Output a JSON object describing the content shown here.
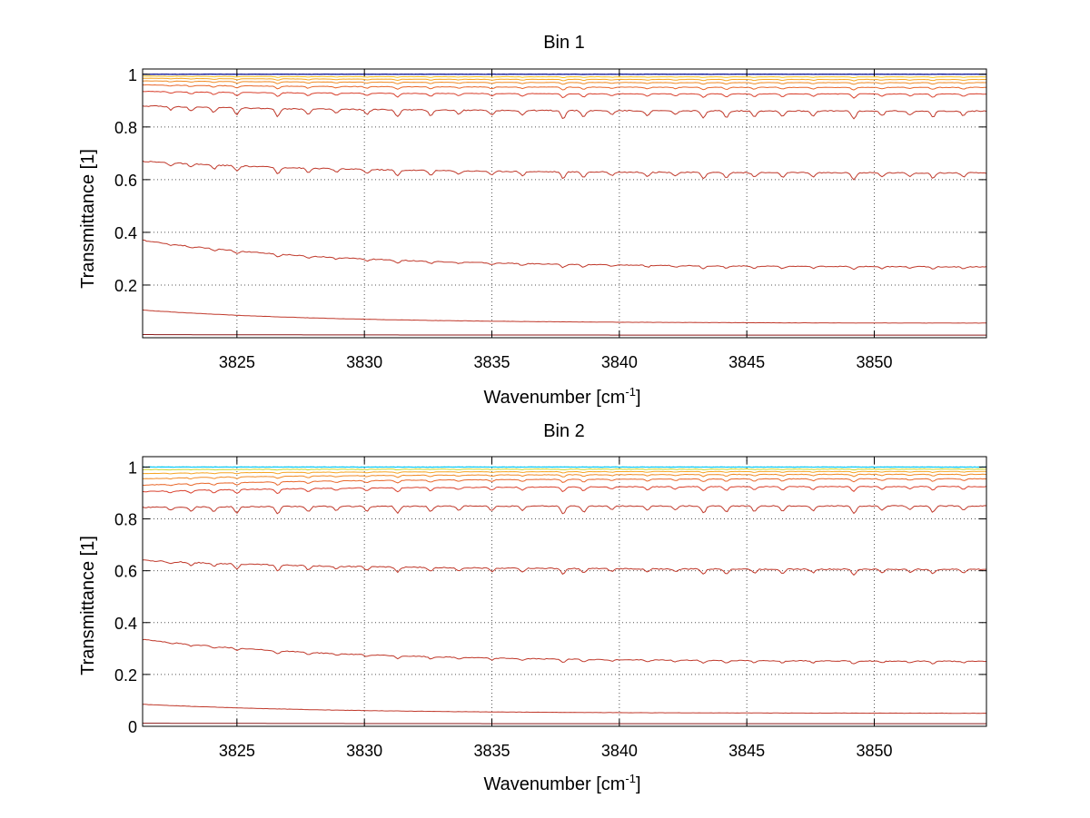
{
  "chart_data": [
    {
      "type": "line",
      "title": "Bin 1",
      "xlabel": "Wavenumber [cm",
      "xlabel_sup": "-1",
      "xlabel_end": "]",
      "ylabel": "Transmittance [1]",
      "xlim": [
        3821.3,
        3854.4
      ],
      "ylim": [
        0,
        1.02
      ],
      "xticks": [
        3825,
        3830,
        3835,
        3840,
        3845,
        3850
      ],
      "xtick_labels": [
        "3825",
        "3830",
        "3835",
        "3840",
        "3845",
        "3850"
      ],
      "yticks": [
        0.2,
        0.4,
        0.6,
        0.8,
        1
      ],
      "ytick_labels": [
        "0.2",
        "0.4",
        "0.6",
        "0.8",
        "1"
      ],
      "grid": true,
      "series": [
        {
          "name": "s1",
          "color": "#8b1a1a",
          "start": 0.012,
          "end": 0.01,
          "noise": 0.0,
          "dips": 0.0
        },
        {
          "name": "s2",
          "color": "#c0392b",
          "start": 0.105,
          "end": 0.055,
          "noise": 0.001,
          "dips": 0.0
        },
        {
          "name": "s3",
          "color": "#c0392b",
          "start": 0.37,
          "end": 0.268,
          "noise": 0.003,
          "dips": 0.012
        },
        {
          "name": "s4",
          "color": "#c0392b",
          "start": 0.67,
          "end": 0.625,
          "noise": 0.004,
          "dips": 0.025
        },
        {
          "name": "s5",
          "color": "#c0392b",
          "start": 0.88,
          "end": 0.86,
          "noise": 0.004,
          "dips": 0.03
        },
        {
          "name": "s6",
          "color": "#d9412e",
          "start": 0.935,
          "end": 0.925,
          "noise": 0.002,
          "dips": 0.015
        },
        {
          "name": "s7",
          "color": "#e8672a",
          "start": 0.96,
          "end": 0.95,
          "noise": 0.002,
          "dips": 0.01
        },
        {
          "name": "s8",
          "color": "#f08a24",
          "start": 0.975,
          "end": 0.968,
          "noise": 0.001,
          "dips": 0.007
        },
        {
          "name": "s9",
          "color": "#f5a623",
          "start": 0.985,
          "end": 0.98,
          "noise": 0.001,
          "dips": 0.005
        },
        {
          "name": "s10",
          "color": "#f7c21f",
          "start": 0.993,
          "end": 0.99,
          "noise": 0.001,
          "dips": 0.003
        },
        {
          "name": "s11",
          "color": "#1a3fc0",
          "start": 1.0,
          "end": 1.0,
          "noise": 0.002,
          "dips": 0.0
        },
        {
          "name": "s12",
          "color": "#00008b",
          "start": 1.0,
          "end": 1.0,
          "noise": 0.001,
          "dips": 0.0
        }
      ]
    },
    {
      "type": "line",
      "title": "Bin 2",
      "xlabel": "Wavenumber [cm",
      "xlabel_sup": "-1",
      "xlabel_end": "]",
      "ylabel": "Transmittance [1]",
      "xlim": [
        3821.3,
        3854.4
      ],
      "ylim": [
        0,
        1.04
      ],
      "xticks": [
        3825,
        3830,
        3835,
        3840,
        3845,
        3850
      ],
      "xtick_labels": [
        "3825",
        "3830",
        "3835",
        "3840",
        "3845",
        "3850"
      ],
      "yticks": [
        0,
        0.2,
        0.4,
        0.6,
        0.8,
        1
      ],
      "ytick_labels": [
        "0",
        "0.2",
        "0.4",
        "0.6",
        "0.8",
        "1"
      ],
      "grid": true,
      "series": [
        {
          "name": "s1",
          "color": "#8b1a1a",
          "start": 0.012,
          "end": 0.01,
          "noise": 0.0,
          "dips": 0.0
        },
        {
          "name": "s2",
          "color": "#c0392b",
          "start": 0.085,
          "end": 0.05,
          "noise": 0.001,
          "dips": 0.0
        },
        {
          "name": "s3",
          "color": "#c0392b",
          "start": 0.335,
          "end": 0.25,
          "noise": 0.003,
          "dips": 0.012
        },
        {
          "name": "s4",
          "color": "#c0392b",
          "start": 0.64,
          "end": 0.605,
          "noise": 0.004,
          "dips": 0.022
        },
        {
          "name": "s5",
          "color": "#c0392b",
          "start": 0.845,
          "end": 0.85,
          "noise": 0.004,
          "dips": 0.03
        },
        {
          "name": "s6",
          "color": "#d9412e",
          "start": 0.905,
          "end": 0.925,
          "noise": 0.003,
          "dips": 0.018
        },
        {
          "name": "s7",
          "color": "#e8672a",
          "start": 0.93,
          "end": 0.955,
          "noise": 0.002,
          "dips": 0.012
        },
        {
          "name": "s8",
          "color": "#f08a24",
          "start": 0.955,
          "end": 0.972,
          "noise": 0.002,
          "dips": 0.008
        },
        {
          "name": "s9",
          "color": "#f5a623",
          "start": 0.975,
          "end": 0.983,
          "noise": 0.001,
          "dips": 0.005
        },
        {
          "name": "s10",
          "color": "#c8d62e",
          "start": 0.99,
          "end": 0.992,
          "noise": 0.002,
          "dips": 0.002
        },
        {
          "name": "s11",
          "color": "#2ed0d0",
          "start": 1.0,
          "end": 1.0,
          "noise": 0.002,
          "dips": 0.0
        },
        {
          "name": "s12",
          "color": "#00c8ff",
          "start": 1.0,
          "end": 1.0,
          "noise": 0.001,
          "dips": 0.0
        }
      ]
    }
  ]
}
